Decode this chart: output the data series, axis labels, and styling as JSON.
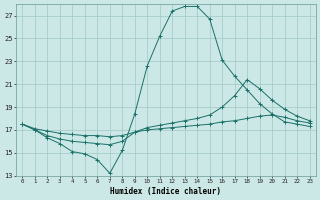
{
  "xlabel": "Humidex (Indice chaleur)",
  "bg_color": "#cce8e6",
  "grid_color": "#a0c8c4",
  "line_color": "#1a7068",
  "xlim": [
    -0.5,
    23.5
  ],
  "ylim": [
    13,
    28
  ],
  "yticks": [
    13,
    15,
    17,
    19,
    21,
    23,
    25,
    27
  ],
  "xticks": [
    0,
    1,
    2,
    3,
    4,
    5,
    6,
    7,
    8,
    9,
    10,
    11,
    12,
    13,
    14,
    15,
    16,
    17,
    18,
    19,
    20,
    21,
    22,
    23
  ],
  "series1_x": [
    0,
    1,
    2,
    3,
    4,
    5,
    6,
    7,
    8,
    9,
    10,
    11,
    12,
    13,
    14,
    15,
    16,
    17,
    18,
    19,
    20,
    21,
    22,
    23
  ],
  "series1_y": [
    17.5,
    17.0,
    16.3,
    15.8,
    15.1,
    14.9,
    14.4,
    13.2,
    15.2,
    18.4,
    22.6,
    25.2,
    27.4,
    27.8,
    27.8,
    26.7,
    23.1,
    21.7,
    20.5,
    19.3,
    18.4,
    17.7,
    17.5,
    17.3
  ],
  "series2_x": [
    0,
    1,
    2,
    3,
    4,
    5,
    6,
    7,
    8,
    9,
    10,
    11,
    12,
    13,
    14,
    15,
    16,
    17,
    18,
    19,
    20,
    21,
    22,
    23
  ],
  "series2_y": [
    17.5,
    17.0,
    16.5,
    16.2,
    16.0,
    15.9,
    15.8,
    15.7,
    16.0,
    16.8,
    17.2,
    17.4,
    17.6,
    17.8,
    18.0,
    18.3,
    19.0,
    20.0,
    21.4,
    20.6,
    19.6,
    18.8,
    18.2,
    17.8
  ],
  "series3_x": [
    0,
    1,
    2,
    3,
    4,
    5,
    6,
    7,
    8,
    9,
    10,
    11,
    12,
    13,
    14,
    15,
    16,
    17,
    18,
    19,
    20,
    21,
    22,
    23
  ],
  "series3_y": [
    17.5,
    17.1,
    16.9,
    16.7,
    16.6,
    16.5,
    16.5,
    16.4,
    16.5,
    16.8,
    17.0,
    17.1,
    17.2,
    17.3,
    17.4,
    17.5,
    17.7,
    17.8,
    18.0,
    18.2,
    18.3,
    18.1,
    17.8,
    17.6
  ]
}
